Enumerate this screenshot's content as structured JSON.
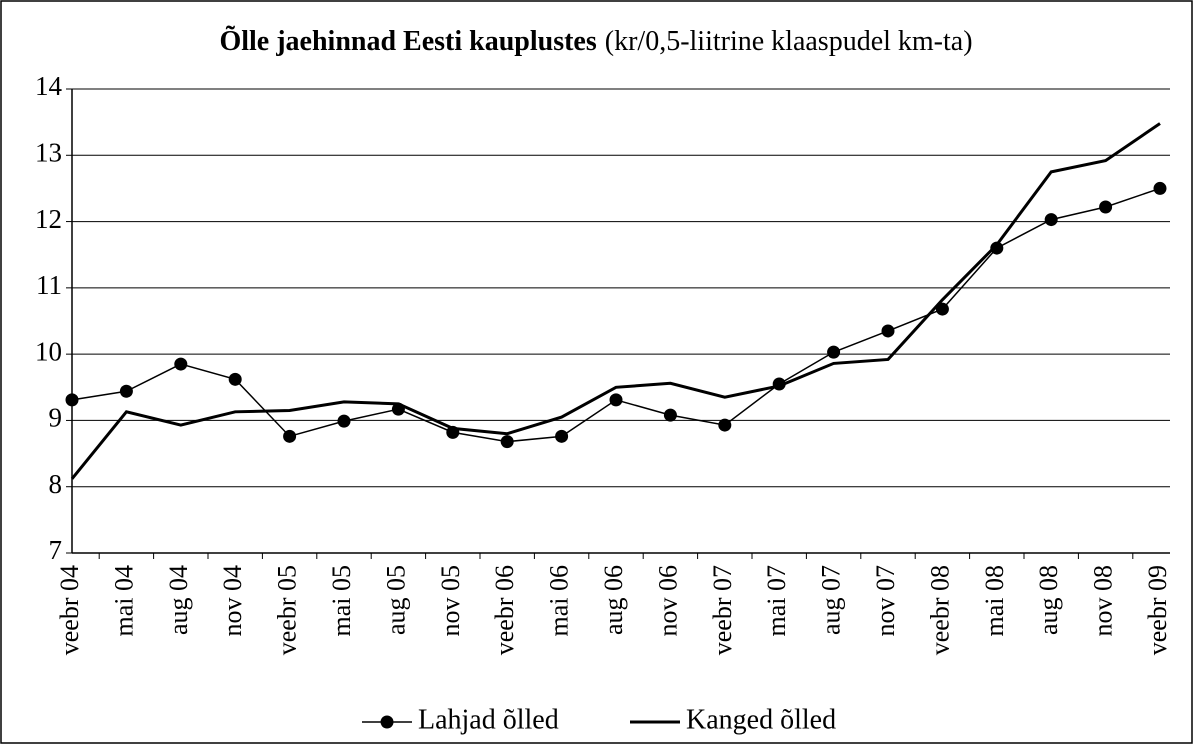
{
  "chart_data": {
    "type": "line",
    "title": "Õlle jaehinnad Eesti kauplustes",
    "subtitle": "(kr/0,5-liitrine klaaspudel km-ta)",
    "categories": [
      "veebr 04",
      "mai 04",
      "aug 04",
      "nov 04",
      "veebr 05",
      "mai 05",
      "aug 05",
      "nov 05",
      "veebr 06",
      "mai 06",
      "aug 06",
      "nov 06",
      "veebr 07",
      "mai 07",
      "aug 07",
      "nov 07",
      "veebr 08",
      "mai 08",
      "aug 08",
      "nov 08",
      "veebr 09"
    ],
    "series": [
      {
        "name": "Lahjad õlled",
        "color": "#000000",
        "marker": "circle",
        "values": [
          9.31,
          9.44,
          9.85,
          9.62,
          8.76,
          8.99,
          9.17,
          8.82,
          8.68,
          8.76,
          9.31,
          9.08,
          8.93,
          9.55,
          10.03,
          10.35,
          10.68,
          11.6,
          12.03,
          12.22,
          12.5
        ]
      },
      {
        "name": "Kanged õlled",
        "color": "#000000",
        "marker": "none",
        "values": [
          8.12,
          9.13,
          8.93,
          9.13,
          9.15,
          9.28,
          9.25,
          8.88,
          8.8,
          9.05,
          9.5,
          9.56,
          9.35,
          9.52,
          9.86,
          9.92,
          10.82,
          11.65,
          12.75,
          12.92,
          13.48
        ]
      }
    ],
    "ylim": [
      7,
      14
    ],
    "yticks": [
      7,
      8,
      9,
      10,
      11,
      12,
      13,
      14
    ],
    "grid": true,
    "legend": "bottom"
  }
}
